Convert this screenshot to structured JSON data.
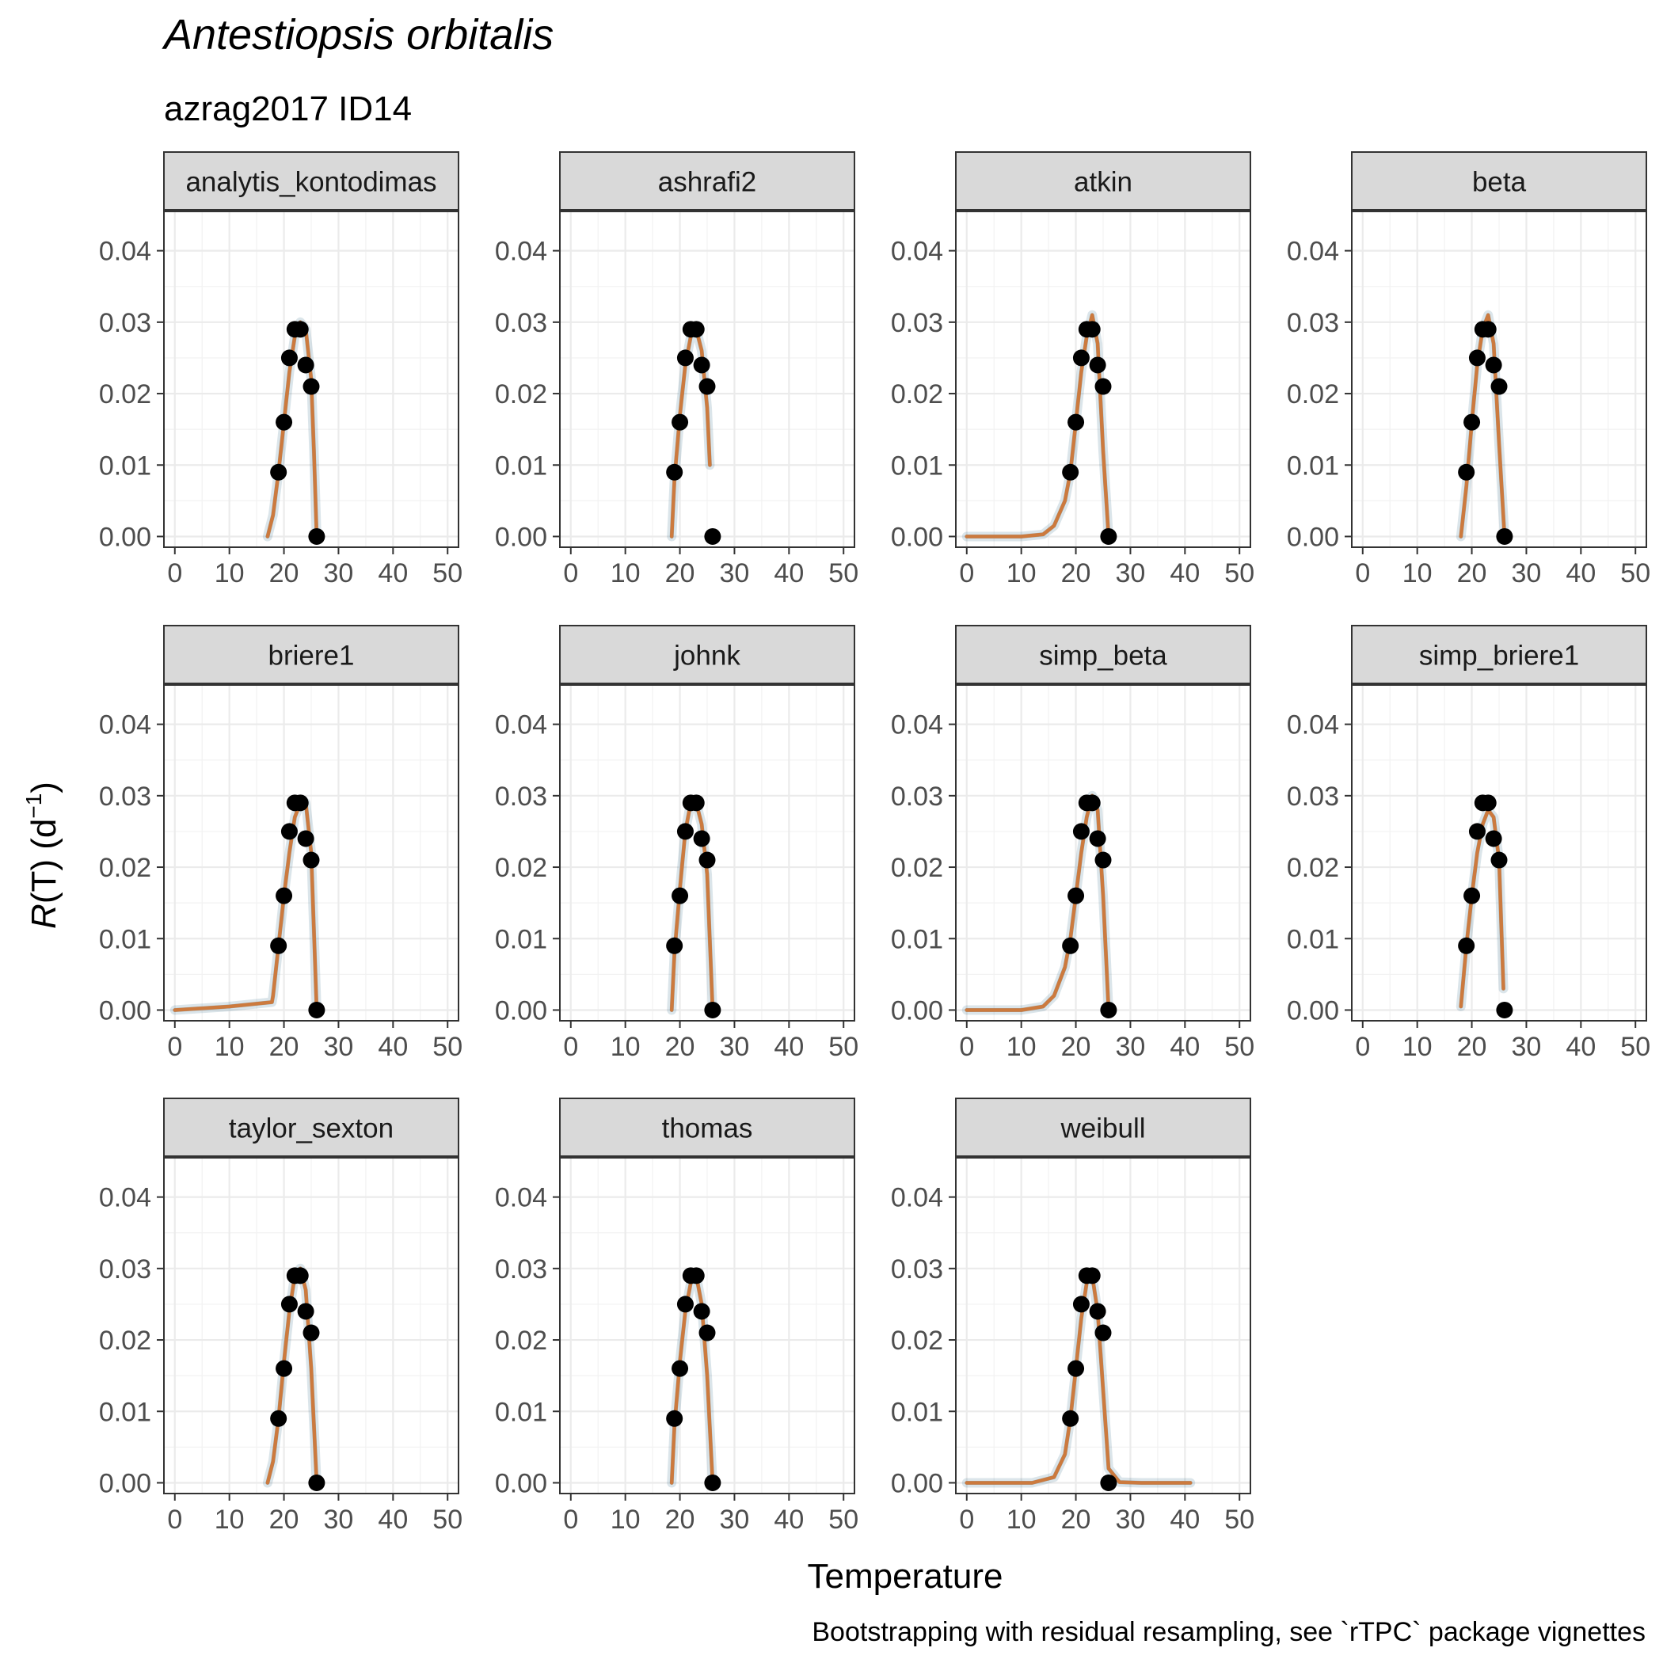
{
  "title": "Antestiopsis orbitalis",
  "subtitle": "azrag2017 ID14",
  "caption": "Bootstrapping with residual resampling, see `rTPC` package vignettes",
  "xlabel": "Temperature",
  "ylabel": {
    "prefix": "R",
    "body": "(T) (d",
    "sup": "−1",
    "suffix": ")"
  },
  "colors": {
    "fit": "#CC7A3E",
    "bootstrap": "#1F5C7A",
    "points": "#000000",
    "strip_bg": "#D9D9D9",
    "grid": "#EBEBEB"
  },
  "chart_data": {
    "type": "scatter",
    "layout": "facet grid of 11 panels in 4 columns",
    "xlim": [
      -2,
      52
    ],
    "ylim": [
      -0.0015,
      0.0455
    ],
    "x_ticks": [
      0,
      10,
      20,
      30,
      40,
      50
    ],
    "y_ticks": [
      0,
      0.01,
      0.02,
      0.03,
      0.04
    ],
    "x_tick_labels": [
      "0",
      "10",
      "20",
      "30",
      "40",
      "50"
    ],
    "y_tick_labels": [
      "0.00",
      "0.01",
      "0.02",
      "0.03",
      "0.04"
    ],
    "grid": true,
    "observed": {
      "temperature": [
        19,
        20,
        21,
        22,
        23,
        24,
        25,
        26
      ],
      "rate": [
        0.009,
        0.016,
        0.025,
        0.029,
        0.029,
        0.024,
        0.021,
        0.0
      ]
    },
    "panels": [
      {
        "model": "analytis_kontodimas",
        "fit": {
          "x": [
            17,
            18,
            19,
            20,
            21,
            22,
            23,
            24,
            25,
            25.5,
            26
          ],
          "y": [
            0,
            0.003,
            0.009,
            0.016,
            0.023,
            0.028,
            0.03,
            0.029,
            0.022,
            0.012,
            0.0
          ]
        }
      },
      {
        "model": "ashrafi2",
        "fit": {
          "x": [
            18.5,
            19,
            20,
            21,
            22,
            23,
            24,
            25,
            25.5
          ],
          "y": [
            0.0,
            0.008,
            0.017,
            0.024,
            0.028,
            0.029,
            0.026,
            0.018,
            0.01
          ]
        }
      },
      {
        "model": "atkin",
        "fit": {
          "x": [
            0,
            10,
            14,
            16,
            18,
            19,
            20,
            21,
            22,
            23,
            24,
            25,
            26
          ],
          "y": [
            0,
            0,
            0.0003,
            0.0015,
            0.005,
            0.009,
            0.016,
            0.023,
            0.028,
            0.031,
            0.027,
            0.012,
            0
          ]
        }
      },
      {
        "model": "beta",
        "fit": {
          "x": [
            18,
            19,
            20,
            21,
            22,
            23,
            24,
            25,
            26
          ],
          "y": [
            0,
            0.007,
            0.016,
            0.024,
            0.029,
            0.031,
            0.027,
            0.013,
            0
          ]
        }
      },
      {
        "model": "briere1",
        "fit": {
          "x": [
            0,
            10,
            17.8,
            18,
            19,
            20,
            21,
            22,
            23,
            24,
            25,
            26
          ],
          "y": [
            0,
            0.0005,
            0.0011,
            0.002,
            0.009,
            0.016,
            0.022,
            0.027,
            0.029,
            0.029,
            0.022,
            0
          ]
        }
      },
      {
        "model": "johnk",
        "fit": {
          "x": [
            18.5,
            19,
            20,
            21,
            22,
            23,
            24,
            25,
            26
          ],
          "y": [
            0.0,
            0.008,
            0.017,
            0.025,
            0.029,
            0.029,
            0.026,
            0.019,
            0.0
          ]
        }
      },
      {
        "model": "simp_beta",
        "fit": {
          "x": [
            0,
            10,
            14,
            16,
            18,
            19,
            20,
            21,
            22,
            23,
            24,
            25,
            26
          ],
          "y": [
            0,
            0,
            0.0005,
            0.002,
            0.006,
            0.01,
            0.016,
            0.022,
            0.027,
            0.03,
            0.028,
            0.016,
            0
          ]
        }
      },
      {
        "model": "simp_briere1",
        "fit": {
          "x": [
            18,
            19,
            20,
            21,
            22,
            23,
            24,
            25,
            25.8
          ],
          "y": [
            0.0005,
            0.009,
            0.016,
            0.022,
            0.026,
            0.028,
            0.027,
            0.021,
            0.003
          ]
        }
      },
      {
        "model": "taylor_sexton",
        "fit": {
          "x": [
            17,
            18,
            19,
            20,
            21,
            22,
            23,
            24,
            25,
            26
          ],
          "y": [
            0,
            0.003,
            0.009,
            0.017,
            0.024,
            0.029,
            0.03,
            0.027,
            0.016,
            0
          ]
        }
      },
      {
        "model": "thomas",
        "fit": {
          "x": [
            18.5,
            19,
            20,
            21,
            22,
            23,
            24,
            25,
            26
          ],
          "y": [
            0.0,
            0.008,
            0.017,
            0.024,
            0.028,
            0.029,
            0.025,
            0.015,
            0.0
          ]
        }
      },
      {
        "model": "weibull",
        "fit": {
          "x": [
            0,
            12,
            16,
            18,
            19,
            20,
            21,
            22,
            23,
            24,
            25,
            26,
            28,
            32,
            41
          ],
          "y": [
            0,
            0,
            0.0008,
            0.004,
            0.009,
            0.016,
            0.023,
            0.028,
            0.029,
            0.024,
            0.013,
            0.002,
            0.0001,
            0,
            0
          ]
        }
      }
    ]
  }
}
